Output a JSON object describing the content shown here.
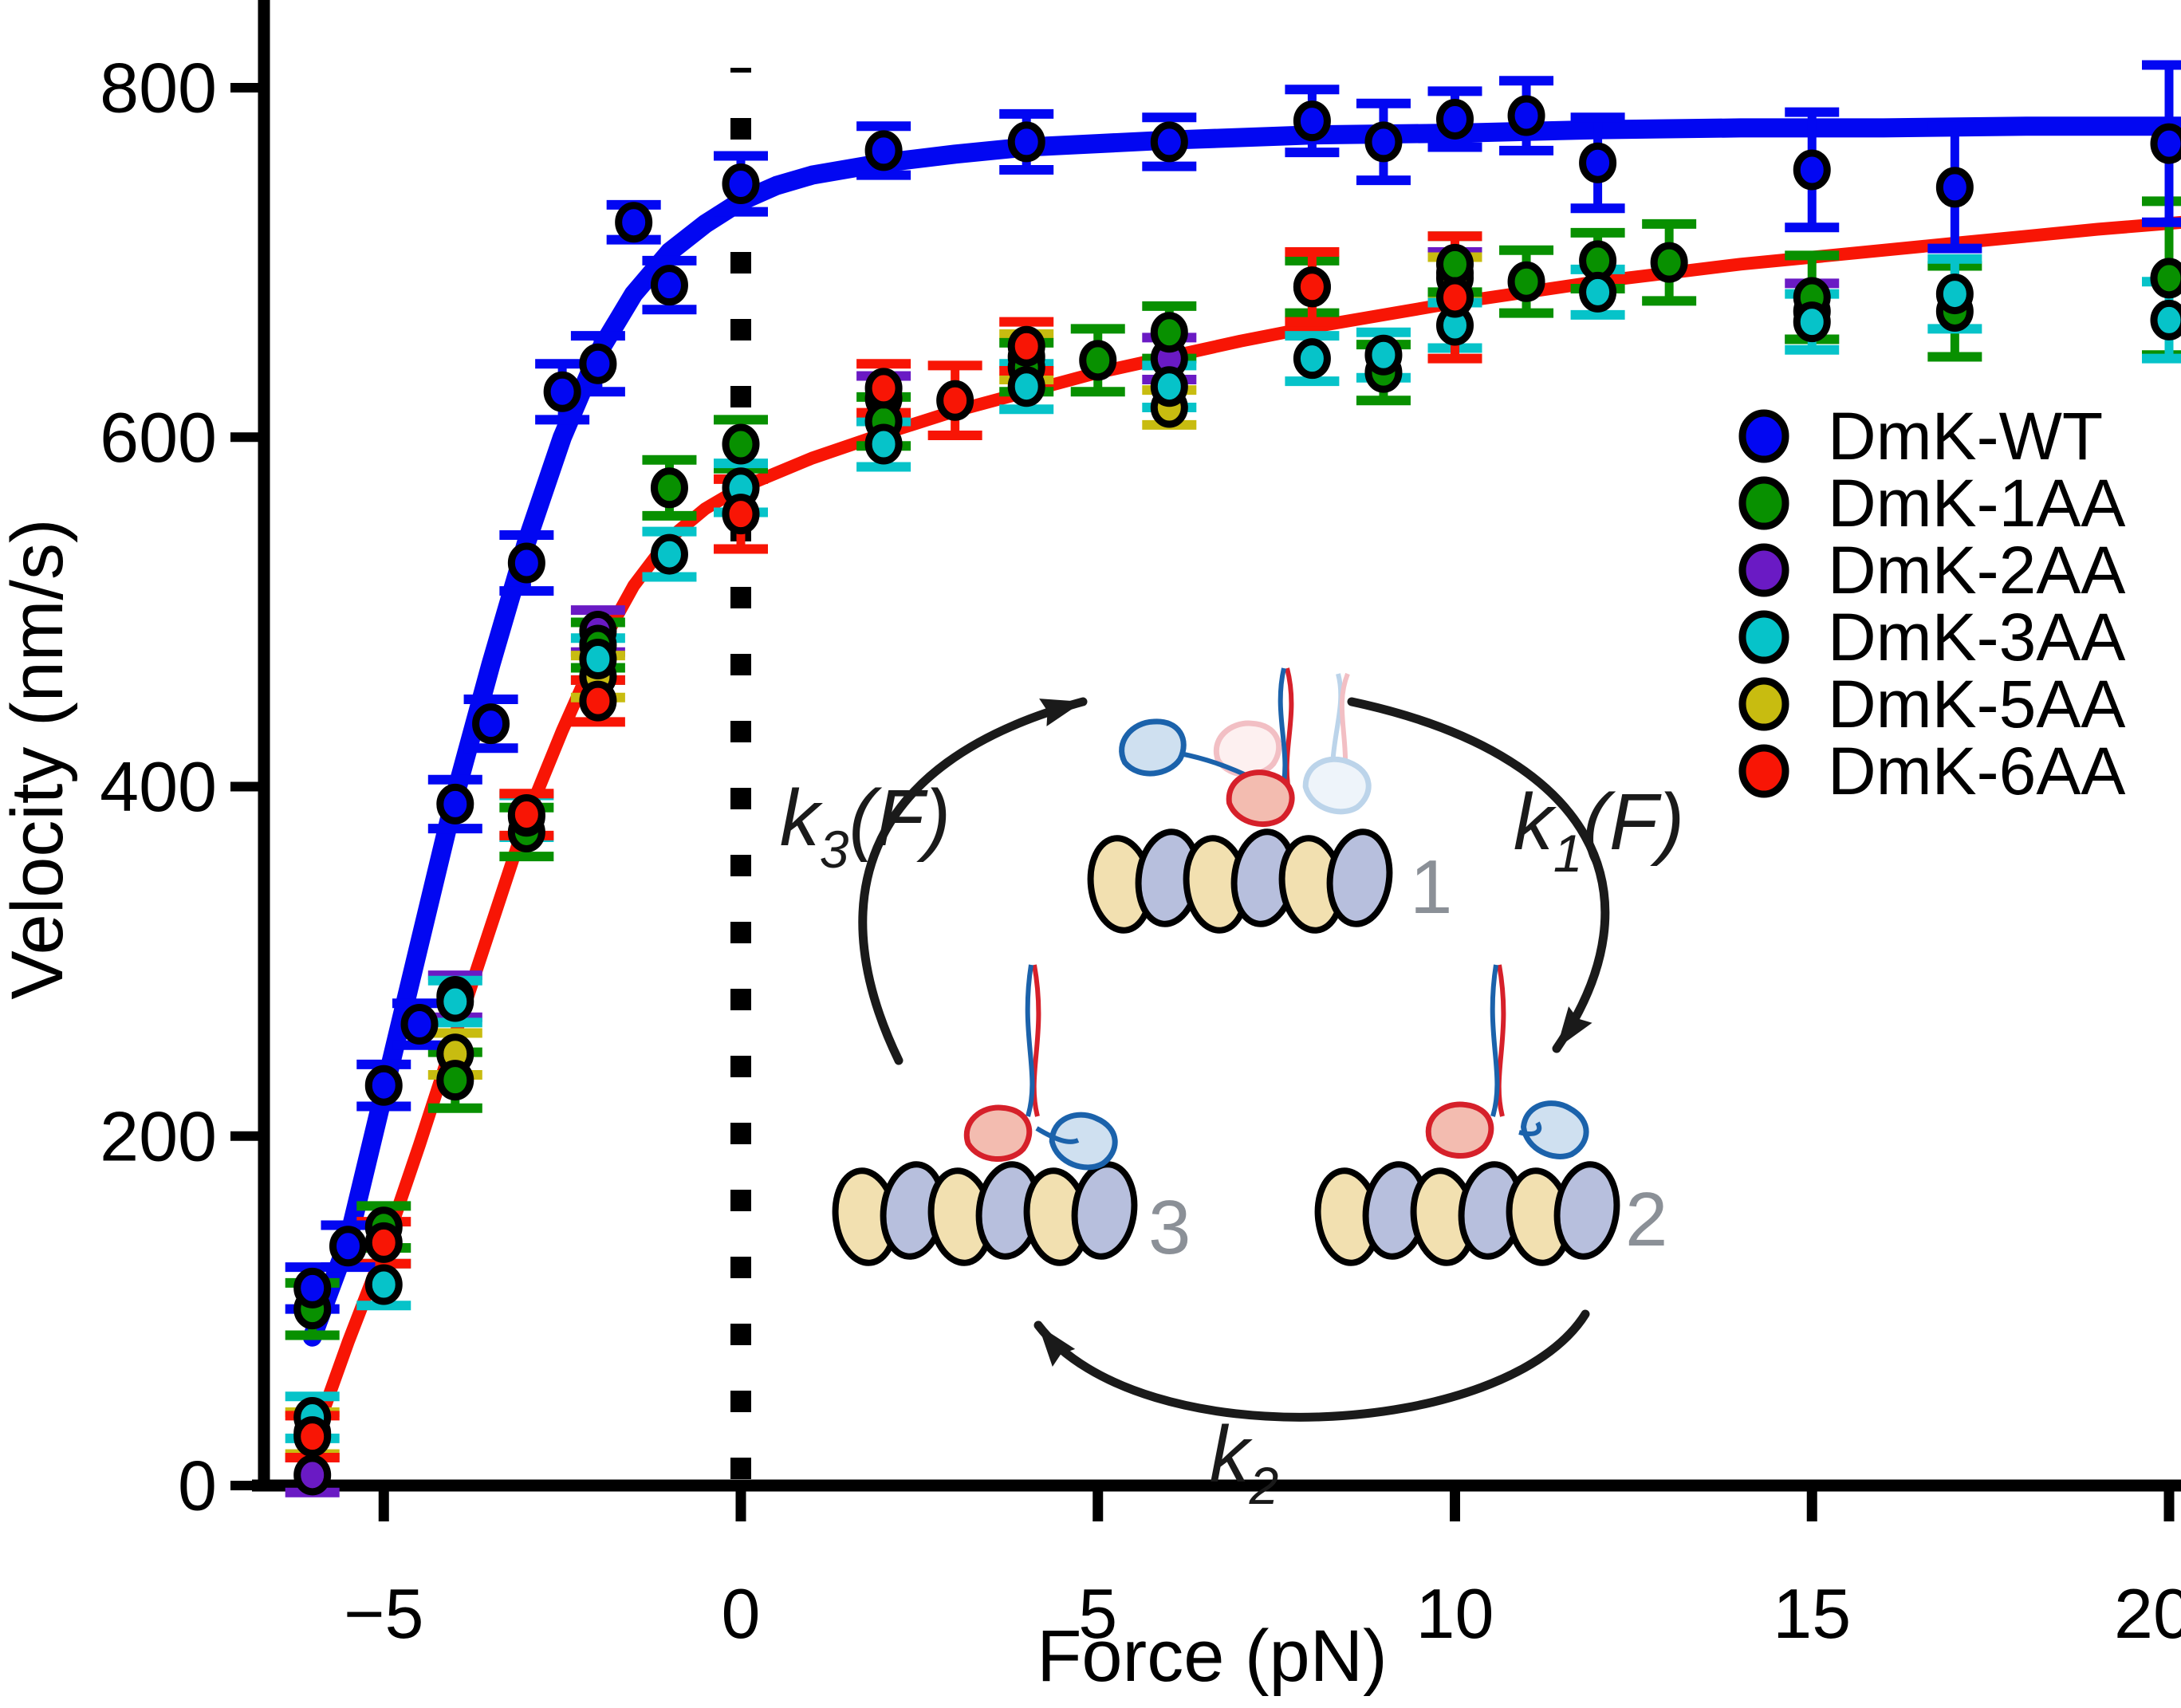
{
  "figure": {
    "x_axis": {
      "label": "Force (pN)",
      "ticks": [
        {
          "v": -5,
          "label": "−5"
        },
        {
          "v": 0,
          "label": "0"
        },
        {
          "v": 5,
          "label": "5"
        },
        {
          "v": 10,
          "label": "10"
        },
        {
          "v": 15,
          "label": "15"
        },
        {
          "v": 20,
          "label": "20"
        }
      ]
    },
    "y_axis": {
      "label": "Velocity (nm/s)",
      "ticks": [
        {
          "v": 0,
          "label": "0"
        },
        {
          "v": 200,
          "label": "200"
        },
        {
          "v": 400,
          "label": "400"
        },
        {
          "v": 600,
          "label": "600"
        },
        {
          "v": 800,
          "label": "800"
        }
      ]
    },
    "zero_force_line_x": 0
  },
  "legend": {
    "items": [
      {
        "label": "DmK-WT",
        "color": "#0207f2"
      },
      {
        "label": "DmK-1AA",
        "color": "#089000"
      },
      {
        "label": "DmK-2AA",
        "color": "#6a1ac4"
      },
      {
        "label": "DmK-3AA",
        "color": "#06c3c9"
      },
      {
        "label": "DmK-5AA",
        "color": "#c8bc10"
      },
      {
        "label": "DmK-6AA",
        "color": "#f81505"
      }
    ]
  },
  "chart_data": {
    "type": "scatter",
    "title": "",
    "xlabel": "Force (pN)",
    "ylabel": "Velocity (nm/s)",
    "xlim": [
      -6.7,
      20.2
    ],
    "ylim": [
      0,
      850
    ],
    "x_ticks": [
      -5,
      0,
      5,
      10,
      15,
      20
    ],
    "y_ticks": [
      0,
      200,
      400,
      600,
      800
    ],
    "grid": false,
    "legend_position": "upper right",
    "zero_line": {
      "x": 0,
      "style": "dotted"
    },
    "series": [
      {
        "name": "DmK-2AA",
        "color": "#6a1ac4",
        "points": [
          [
            -6,
            6,
            10
          ],
          [
            -4,
            280,
            12
          ],
          [
            -2,
            489,
            12
          ],
          [
            2,
            622,
            13
          ],
          [
            6,
            645,
            12
          ],
          [
            10,
            694,
            12
          ],
          [
            15,
            672,
            16
          ]
        ]
      },
      {
        "name": "DmK-5AA",
        "color": "#c8bc10",
        "points": [
          [
            -6,
            30,
            12
          ],
          [
            -4,
            247,
            12
          ],
          [
            -2,
            463,
            12
          ],
          [
            4,
            646,
            13
          ],
          [
            6,
            617,
            10
          ],
          [
            10,
            691,
            12
          ]
        ]
      },
      {
        "name": "DmK-1AA",
        "color": "#089000",
        "points": [
          [
            -6,
            101,
            15
          ],
          [
            -5,
            148,
            12
          ],
          [
            -4,
            232,
            16
          ],
          [
            -3,
            374,
            14
          ],
          [
            -2,
            481,
            13
          ],
          [
            -1,
            571,
            16
          ],
          [
            0,
            596,
            14
          ],
          [
            2,
            609,
            14
          ],
          [
            4,
            640,
            14
          ],
          [
            5,
            644,
            18
          ],
          [
            6,
            660,
            15
          ],
          [
            8,
            686,
            15
          ],
          [
            9,
            637,
            16
          ],
          [
            10,
            699,
            16
          ],
          [
            11,
            689,
            18
          ],
          [
            12,
            701,
            16
          ],
          [
            13,
            700,
            22
          ],
          [
            15,
            680,
            24
          ],
          [
            17,
            672,
            26
          ],
          [
            20,
            691,
            44
          ]
        ]
      },
      {
        "name": "DmK-3AA",
        "color": "#06c3c9",
        "points": [
          [
            -6,
            39,
            12
          ],
          [
            -5,
            115,
            12
          ],
          [
            -4,
            277,
            12
          ],
          [
            -3,
            383,
            12
          ],
          [
            -2,
            473,
            12
          ],
          [
            -1,
            533,
            13
          ],
          [
            0,
            571,
            14
          ],
          [
            2,
            596,
            13
          ],
          [
            4,
            629,
            13
          ],
          [
            6,
            629,
            12
          ],
          [
            8,
            645,
            13
          ],
          [
            9,
            647,
            13
          ],
          [
            10,
            664,
            13
          ],
          [
            12,
            683,
            13
          ],
          [
            15,
            666,
            16
          ],
          [
            17,
            682,
            20
          ],
          [
            20,
            667,
            22
          ]
        ]
      },
      {
        "name": "DmK-6AA",
        "color": "#f81505",
        "points": [
          [
            -6,
            28,
            12
          ],
          [
            -5,
            139,
            12
          ],
          [
            -3,
            384,
            12
          ],
          [
            -2,
            449,
            12
          ],
          [
            0,
            556,
            20
          ],
          [
            2,
            628,
            14
          ],
          [
            3,
            621,
            20
          ],
          [
            4,
            652,
            14
          ],
          [
            8,
            686,
            20
          ],
          [
            10,
            680,
            35
          ]
        ]
      },
      {
        "name": "DmK-WT",
        "color": "#0207f2",
        "points": [
          [
            -6,
            113,
            12
          ],
          [
            -5.5,
            137,
            12
          ],
          [
            -5,
            229,
            12
          ],
          [
            -4.5,
            264,
            12
          ],
          [
            -4,
            390,
            14
          ],
          [
            -3.5,
            436,
            14
          ],
          [
            -3,
            528,
            16
          ],
          [
            -2.5,
            626,
            16
          ],
          [
            -2,
            642,
            16
          ],
          [
            -1.5,
            723,
            10
          ],
          [
            -1,
            687,
            14
          ],
          [
            0,
            745,
            16
          ],
          [
            2,
            764,
            14
          ],
          [
            4,
            769,
            16
          ],
          [
            6,
            769,
            14
          ],
          [
            8,
            781,
            18
          ],
          [
            9,
            769,
            22
          ],
          [
            10,
            782,
            16
          ],
          [
            11,
            784,
            20
          ],
          [
            12,
            757,
            26
          ],
          [
            15,
            753,
            33
          ],
          [
            17,
            743,
            35
          ],
          [
            20,
            768,
            45
          ]
        ]
      }
    ],
    "fits": [
      {
        "name": "DmK-WT fit",
        "color": "#0207f2",
        "width": 24,
        "points": [
          [
            -6.0,
            85
          ],
          [
            -5.5,
            140
          ],
          [
            -5,
            225
          ],
          [
            -4.5,
            310
          ],
          [
            -4,
            395
          ],
          [
            -3.5,
            470
          ],
          [
            -3,
            540
          ],
          [
            -2.5,
            600
          ],
          [
            -2,
            648
          ],
          [
            -1.5,
            682
          ],
          [
            -1,
            706
          ],
          [
            -0.5,
            722
          ],
          [
            0,
            735
          ],
          [
            0.5,
            744
          ],
          [
            1,
            750
          ],
          [
            2,
            757
          ],
          [
            3,
            762
          ],
          [
            4,
            766
          ],
          [
            5,
            768
          ],
          [
            6,
            770
          ],
          [
            8,
            773
          ],
          [
            10,
            774
          ],
          [
            12,
            776
          ],
          [
            14,
            777
          ],
          [
            16,
            777
          ],
          [
            18,
            778
          ],
          [
            20.2,
            778
          ]
        ]
      },
      {
        "name": "Mutant global fit",
        "color": "#f81505",
        "width": 16,
        "points": [
          [
            -5.85,
            42
          ],
          [
            -5.5,
            82
          ],
          [
            -5,
            135
          ],
          [
            -4.5,
            195
          ],
          [
            -4,
            258
          ],
          [
            -3.5,
            320
          ],
          [
            -3,
            382
          ],
          [
            -2.5,
            432
          ],
          [
            -2,
            478
          ],
          [
            -1.5,
            515
          ],
          [
            -1,
            542
          ],
          [
            -0.5,
            559
          ],
          [
            0,
            571
          ],
          [
            1,
            588
          ],
          [
            2,
            602
          ],
          [
            3,
            615
          ],
          [
            4,
            626
          ],
          [
            5,
            637
          ],
          [
            6,
            646
          ],
          [
            7,
            655
          ],
          [
            8,
            663
          ],
          [
            9,
            670
          ],
          [
            10,
            677
          ],
          [
            11,
            683
          ],
          [
            12,
            689
          ],
          [
            13,
            694
          ],
          [
            14,
            699
          ],
          [
            15,
            703
          ],
          [
            16,
            707
          ],
          [
            17,
            711
          ],
          [
            18,
            715
          ],
          [
            19,
            719
          ],
          [
            20.2,
            723
          ]
        ]
      }
    ]
  },
  "inset": {
    "state_labels": [
      "1",
      "2",
      "3"
    ],
    "rate_labels": [
      {
        "base": "k",
        "sub": "1",
        "arg": "(F)"
      },
      {
        "base": "k",
        "sub": "2",
        "arg": ""
      },
      {
        "base": "k",
        "sub": "3",
        "arg": "(F)"
      }
    ],
    "colors": {
      "tubulin_a": "#f2e0b0",
      "tubulin_b": "#b7bfdd",
      "head_red_stroke": "#d6202a",
      "head_red_fill": "#f3bcb0",
      "head_blue_stroke": "#1b62ab",
      "head_blue_fill": "#cfe0f0",
      "faded_red_stroke": "#f2bfc4",
      "faded_red_fill": "#fdf0f0",
      "faded_blue_stroke": "#bcd4ea",
      "faded_blue_fill": "#eef4fa",
      "number_gray": "#8b9097",
      "arrow_black": "#1a1a1a"
    }
  }
}
